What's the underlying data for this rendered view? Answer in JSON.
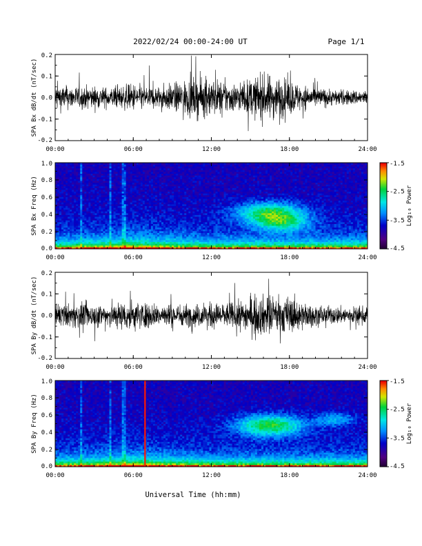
{
  "header": {
    "date_range": "2022/02/24  00:00-24:00 UT",
    "page": "Page 1/1"
  },
  "xaxis_title": "Universal Time (hh:mm)",
  "x_ticks": [
    "00:00",
    "06:00",
    "12:00",
    "18:00",
    "24:00"
  ],
  "colorbar": {
    "label": "Log₁₀ Power",
    "ticks": [
      "-1.5",
      "-2.5",
      "-3.5",
      "-4.5"
    ]
  },
  "chart_data": [
    {
      "type": "line",
      "ylabel": "SPA Bx dB/dt (nT/sec)",
      "ylim": [
        -0.2,
        0.2
      ],
      "y_ticks": [
        "0.2",
        "0.1",
        "0.0",
        "-0.1",
        "-0.2"
      ],
      "x_range_hours": [
        0,
        24
      ],
      "envelope": {
        "x_hours": [
          0,
          1,
          2,
          3,
          4,
          5,
          6,
          7,
          8,
          9,
          10,
          11,
          12,
          13,
          14,
          15,
          16,
          17,
          18,
          19,
          20,
          21,
          22,
          23,
          24
        ],
        "amplitude": [
          0.11,
          0.09,
          0.09,
          0.09,
          0.08,
          0.09,
          0.11,
          0.09,
          0.09,
          0.11,
          0.14,
          0.16,
          0.15,
          0.13,
          0.11,
          0.15,
          0.18,
          0.17,
          0.14,
          0.1,
          0.08,
          0.07,
          0.06,
          0.06,
          0.06
        ]
      }
    },
    {
      "type": "heatmap",
      "ylabel": "SPA Bx Freq (Hz)",
      "ylim": [
        0.0,
        1.0
      ],
      "y_ticks": [
        "1.0",
        "0.8",
        "0.6",
        "0.4",
        "0.2",
        "0.0"
      ],
      "x_range_hours": [
        0,
        24
      ],
      "color_range_log10": [
        -4.5,
        -1.5
      ],
      "enhancements": [
        {
          "t_hours": 16.5,
          "f_hz": 0.42,
          "width_h": 2.5,
          "width_f": 0.12,
          "level": 1.2
        },
        {
          "t_hours": 17.5,
          "f_hz": 0.3,
          "width_h": 2.0,
          "width_f": 0.1,
          "level": 0.8
        }
      ],
      "red_stripe_hours": []
    },
    {
      "type": "line",
      "ylabel": "SPA By dB/dt (nT/sec)",
      "ylim": [
        -0.2,
        0.2
      ],
      "y_ticks": [
        "0.2",
        "0.1",
        "0.0",
        "-0.1",
        "-0.2"
      ],
      "x_range_hours": [
        0,
        24
      ],
      "envelope": {
        "x_hours": [
          0,
          1,
          2,
          3,
          4,
          5,
          6,
          7,
          8,
          9,
          10,
          11,
          12,
          13,
          14,
          15,
          16,
          17,
          18,
          19,
          20,
          21,
          22,
          23,
          24
        ],
        "amplitude": [
          0.09,
          0.09,
          0.1,
          0.09,
          0.1,
          0.11,
          0.12,
          0.1,
          0.09,
          0.09,
          0.09,
          0.09,
          0.1,
          0.1,
          0.11,
          0.15,
          0.16,
          0.14,
          0.15,
          0.11,
          0.08,
          0.07,
          0.07,
          0.07,
          0.07
        ]
      }
    },
    {
      "type": "heatmap",
      "ylabel": "SPA By Freq (Hz)",
      "ylim": [
        0.0,
        1.0
      ],
      "y_ticks": [
        "1.0",
        "0.8",
        "0.6",
        "0.4",
        "0.2",
        "0.0"
      ],
      "x_range_hours": [
        0,
        24
      ],
      "color_range_log10": [
        -4.5,
        -1.5
      ],
      "enhancements": [
        {
          "t_hours": 16.5,
          "f_hz": 0.48,
          "width_h": 2.5,
          "width_f": 0.12,
          "level": 1.3
        },
        {
          "t_hours": 21.5,
          "f_hz": 0.55,
          "width_h": 1.5,
          "width_f": 0.08,
          "level": 0.6
        }
      ],
      "red_stripe_hours": [
        6.9
      ]
    }
  ]
}
